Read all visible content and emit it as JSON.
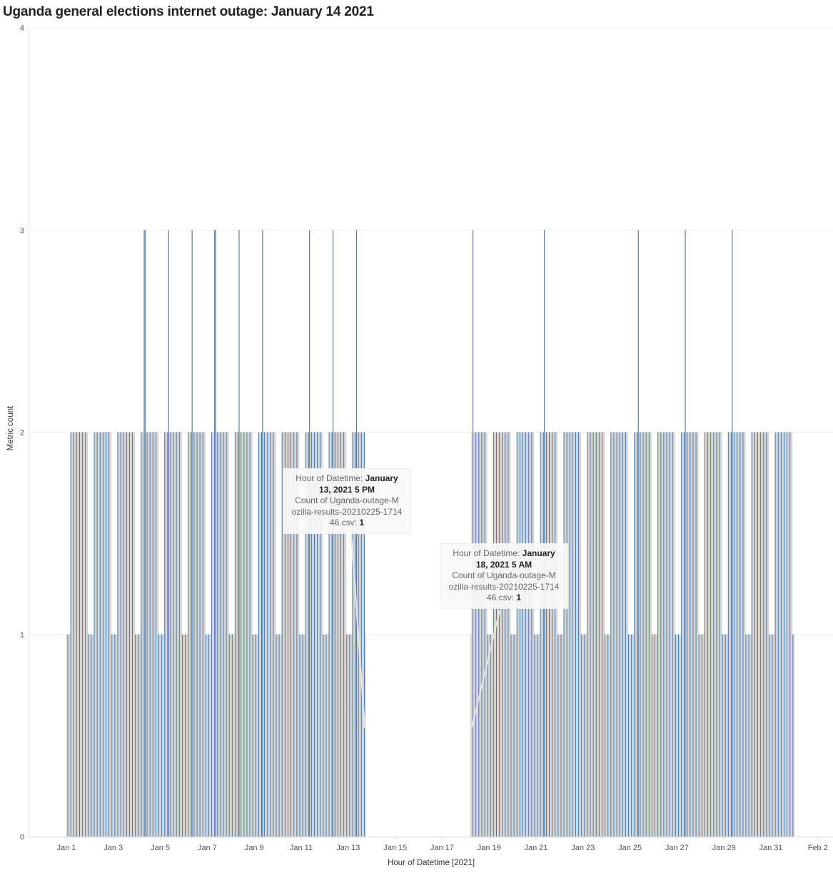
{
  "title": "Uganda general elections internet outage: January 14 2021",
  "chart_data": {
    "type": "bar",
    "title": "Uganda general elections internet outage: January 14 2021",
    "xlabel": "Hour of Datetime [2021]",
    "ylabel": "Metric count",
    "ylim": [
      0,
      4
    ],
    "yticks": [
      "0",
      "1",
      "2",
      "3",
      "4"
    ],
    "xticks": [
      "Jan 1",
      "Jan 3",
      "Jan 5",
      "Jan 7",
      "Jan 9",
      "Jan 11",
      "Jan 13",
      "Jan 15",
      "Jan 17",
      "Jan 19",
      "Jan 21",
      "Jan 23",
      "Jan 25",
      "Jan 27",
      "Jan 29",
      "Jan 31",
      "Feb 2"
    ],
    "grid": true,
    "colors": {
      "bar_fill": "#d3d3d3",
      "bar_stroke": "#4e79a7"
    },
    "hourly_counts_by_day": {
      "Jan 1": "111122222222222222222211",
      "Jan 2": "111122222222222222222211",
      "Jan 3": "111122222222222222222211",
      "Jan 4": "111122233222222222222211",
      "Jan 5": "111122223222222222222211",
      "Jan 6": "111122223222222222222211",
      "Jan 7": "111122233222222222222211",
      "Jan 8": "111122223222222222222211",
      "Jan 9": "111122223222222222222211",
      "Jan 10": "111122222222222222222211",
      "Jan 11": "111122223222222222222211",
      "Jan 12": "111122223222222222222211",
      "Jan 13": "111122223222222221000000",
      "Jan 14": "000000000000000000000000",
      "Jan 15": "000000000000000000000000",
      "Jan 16": "000000000000000000000000",
      "Jan 17": "000000000000000000000000",
      "Jan 18": "000001232222222222222211",
      "Jan 19": "111122222222222222222211",
      "Jan 20": "111122222222222222222211",
      "Jan 21": "111122223222222222222211",
      "Jan 22": "111122222222222222222211",
      "Jan 23": "111122222222222222222211",
      "Jan 24": "111122222222222222222211",
      "Jan 25": "111122223222222222222211",
      "Jan 26": "111122222222222222222211",
      "Jan 27": "111122223222222222222211",
      "Jan 28": "111122222222222222222211",
      "Jan 29": "111122223222222222222211",
      "Jan 30": "111122222222222222222211",
      "Jan 31": "111122222222222222222211"
    },
    "tooltips": [
      {
        "label": "Hour of Datetime:",
        "date_a": "January",
        "date_b": "13, 2021 5 PM",
        "measure_a": "Count of Uganda-outage-M",
        "measure_b": "ozilla-results-20210225-1714",
        "measure_c": "46.csv:",
        "value": "1"
      },
      {
        "label": "Hour of Datetime:",
        "date_a": "January",
        "date_b": "18, 2021 5 AM",
        "measure_a": "Count of Uganda-outage-M",
        "measure_b": "ozilla-results-20210225-1714",
        "measure_c": "46.csv:",
        "value": "1"
      }
    ]
  }
}
